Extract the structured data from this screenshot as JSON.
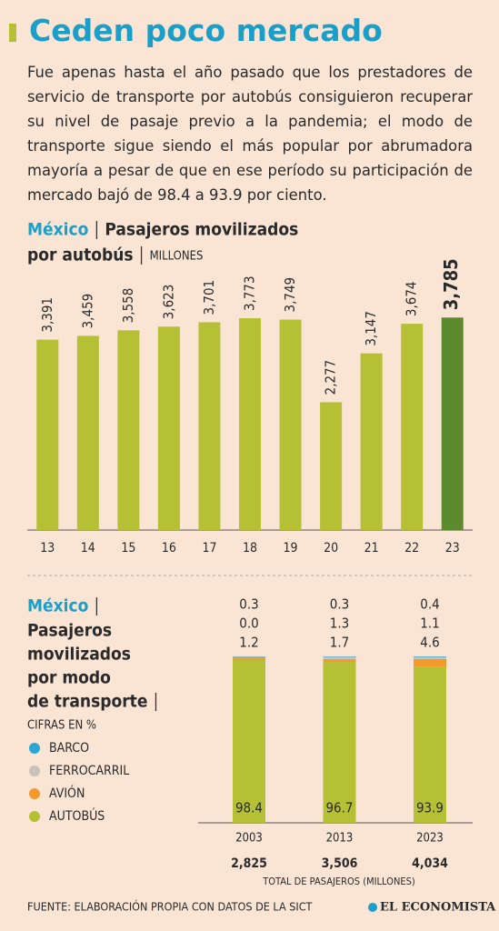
{
  "header": {
    "title": "Ceden poco mercado",
    "text": "Fue apenas hasta el año pasado que los prestadores de servicio de transporte por autobús consiguieron recuperar su nivel de pasaje previo a la pandemia; el modo de transporte sigue siendo el más popular por abrumadora mayoría a pesar de que en ese período su participación de mercado bajó de 98.4 a 93.9 por ciento."
  },
  "chart_data": [
    {
      "type": "bar",
      "location": "México",
      "title_lines": [
        "Pasajeros movilizados",
        "por autobús"
      ],
      "unit": "MILLONES",
      "categories": [
        "13",
        "14",
        "15",
        "16",
        "17",
        "18",
        "19",
        "20",
        "21",
        "22",
        "23"
      ],
      "values": [
        3391,
        3459,
        3558,
        3623,
        3701,
        3773,
        3749,
        2277,
        3147,
        3674,
        3785
      ],
      "value_labels": [
        "3,391",
        "3,459",
        "3,558",
        "3,623",
        "3,701",
        "3,773",
        "3,749",
        "2,277",
        "3,147",
        "3,674",
        "3,785"
      ],
      "colors": [
        "#b5c035",
        "#b5c035",
        "#b5c035",
        "#b5c035",
        "#b5c035",
        "#b5c035",
        "#b5c035",
        "#b5c035",
        "#b5c035",
        "#b5c035",
        "#5e8a2f"
      ],
      "ylim": [
        0,
        4000
      ]
    },
    {
      "type": "stacked_bar",
      "location": "México",
      "title_lines": [
        "Pasajeros",
        "movilizados",
        "por modo",
        "de transporte"
      ],
      "unit": "CIFRAS EN %",
      "categories": [
        "2003",
        "2013",
        "2023"
      ],
      "series": [
        {
          "name": "AUTOBÚS",
          "color": "#b5c035",
          "values": [
            98.4,
            96.7,
            93.9
          ]
        },
        {
          "name": "AVIÓN",
          "color": "#f39a2a",
          "values": [
            1.2,
            1.7,
            4.6
          ]
        },
        {
          "name": "FERROCARRIL",
          "color": "#c9c2ba",
          "values": [
            0,
            1.3,
            1.1
          ],
          "value_labels": [
            "0.0",
            "1.3",
            "1.1"
          ]
        },
        {
          "name": "BARCO",
          "color": "#2aa7d6",
          "values": [
            0.3,
            0.3,
            0.4
          ]
        }
      ],
      "ylim": [
        0,
        100
      ],
      "totals": {
        "label": "TOTAL DE PASAJEROS (MILLONES)",
        "values": [
          2825,
          3506,
          4034
        ],
        "value_labels": [
          "2,825",
          "3,506",
          "4,034"
        ]
      }
    }
  ],
  "footer": {
    "source": "FUENTE: ELABORACIÓN PROPIA CON DATOS DE LA SICT",
    "logo": "EL ECONOMISTA"
  }
}
